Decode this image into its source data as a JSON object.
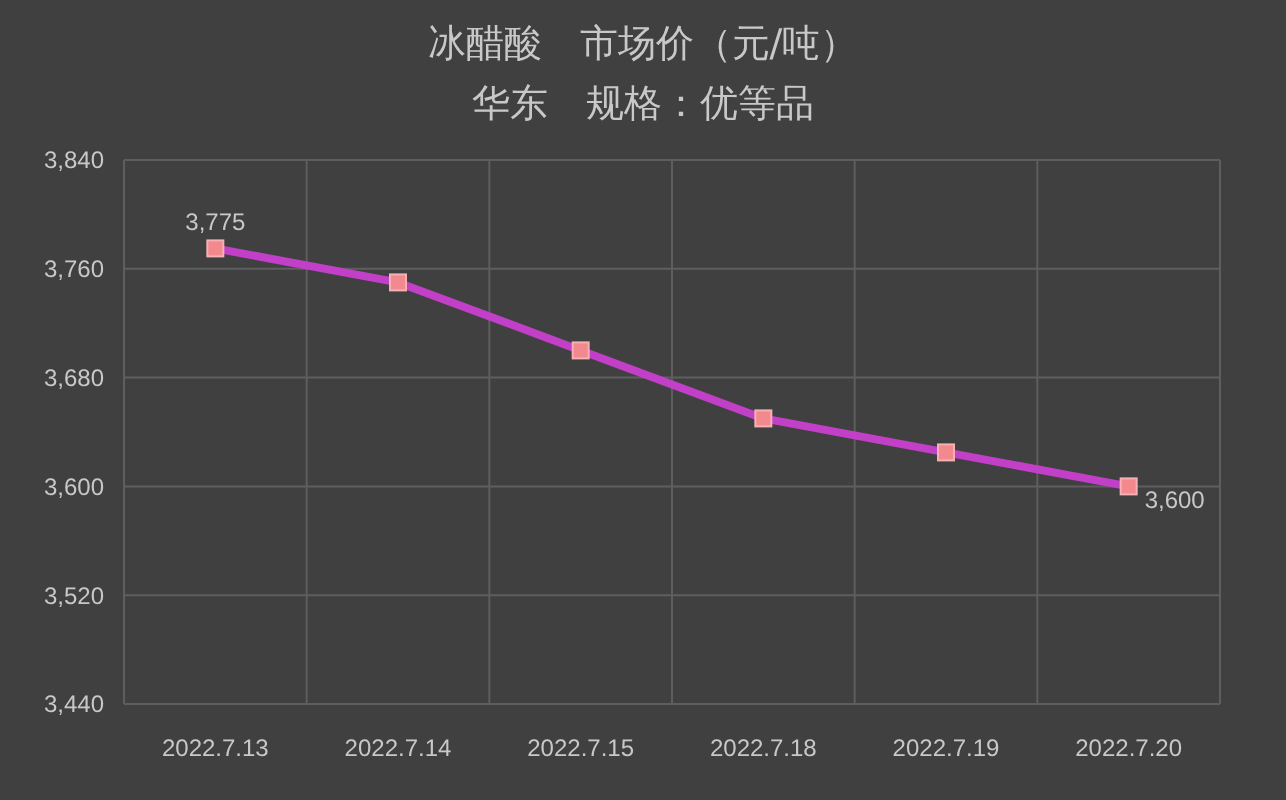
{
  "chart_data": {
    "type": "line",
    "title": "冰醋酸　市场价（元/吨）",
    "subtitle": "华东　规格：优等品",
    "categories": [
      "2022.7.13",
      "2022.7.14",
      "2022.7.15",
      "2022.7.18",
      "2022.7.19",
      "2022.7.20"
    ],
    "series": [
      {
        "color": "#c23fc8",
        "values": [
          3775,
          3750,
          3700,
          3650,
          3625,
          3600
        ],
        "value_labels": [
          "3,775",
          null,
          null,
          null,
          null,
          "3,600"
        ]
      }
    ],
    "ylim": [
      3440,
      3840
    ],
    "yticks": [
      {
        "value": 3440,
        "label": "3,440"
      },
      {
        "value": 3520,
        "label": "3,520"
      },
      {
        "value": 3600,
        "label": "3,600"
      },
      {
        "value": 3680,
        "label": "3,680"
      },
      {
        "value": 3760,
        "label": "3,760"
      },
      {
        "value": 3840,
        "label": "3,840"
      }
    ],
    "grid": true,
    "marker": "square",
    "line_style": "solid"
  }
}
